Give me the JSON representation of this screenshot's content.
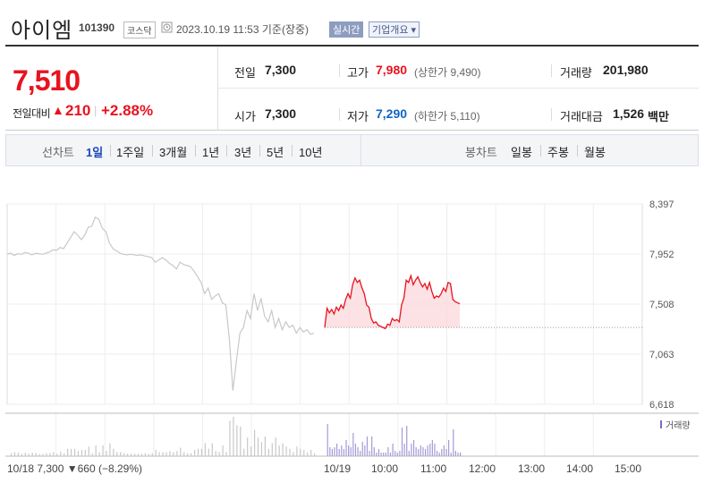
{
  "header": {
    "name": "아이엠",
    "code": "101390",
    "market": "코스닥",
    "datetime": "2023.10.19 11:53  기준(장중)",
    "realtime_label": "실시간",
    "overview_label": "기업개요 ▾"
  },
  "quote": {
    "price": "7,510",
    "change_label": "전일대비",
    "change_amount": "210",
    "change_rate": "+2.88%",
    "prev_close_label": "전일",
    "prev_close": "7,300",
    "open_label": "시가",
    "open": "7,300",
    "high_label": "고가",
    "high": "7,980",
    "upper_limit": "(상한가 9,490)",
    "low_label": "저가",
    "low": "7,290",
    "lower_limit": "(하한가 5,110)",
    "volume_label": "거래량",
    "volume": "201,980",
    "amount_label": "거래대금",
    "amount": "1,526",
    "amount_unit": "백만"
  },
  "tabs": {
    "line_chart_label": "선차트",
    "line_tabs": [
      "1일",
      "1주일",
      "3개월",
      "1년",
      "3년",
      "5년",
      "10년"
    ],
    "selected": "1일",
    "candle_chart_label": "봉차트",
    "candle_tabs": [
      "일봉",
      "주봉",
      "월봉"
    ]
  },
  "chart_data": {
    "type": "line",
    "y_ticks": [
      "8,397",
      "7,952",
      "7,508",
      "7,063",
      "6,618"
    ],
    "ylim": [
      6618,
      8397
    ],
    "prev_close_ref": 7300,
    "x_ticks": [
      "10/19",
      "10:00",
      "11:00",
      "12:00",
      "13:00",
      "14:00",
      "15:00"
    ],
    "prev_day_summary": "10/18  7,300 ▼660 (−8.29%)",
    "volume_legend": "거래량",
    "series": [
      {
        "values": [
          7950,
          7960,
          7940,
          7955,
          7950,
          7965,
          7960,
          7945,
          7958,
          7955,
          7950,
          7960,
          7970,
          7990,
          7985,
          8010,
          8000,
          8050,
          8100,
          8150,
          8120,
          8080,
          8120,
          8190,
          8200,
          8280,
          8260,
          8180,
          8150,
          8050,
          8000,
          7980,
          7960,
          7950,
          7945,
          7950,
          7945,
          7940,
          7945,
          7935,
          7930,
          7920,
          7880,
          7900,
          7920,
          7900,
          7870,
          7850,
          7820,
          7880,
          7860,
          7850,
          7840,
          7800,
          7750,
          7700,
          7600,
          7650,
          7550,
          7580,
          7600,
          7520,
          7500,
          7200,
          6740,
          7000,
          7250,
          7300,
          7450,
          7380,
          7600,
          7450,
          7560,
          7400,
          7350,
          7450,
          7300,
          7380,
          7280,
          7350,
          7300,
          7320,
          7250,
          7300,
          7260,
          7280,
          7240,
          7250
        ]
      },
      {
        "values": [
          7300,
          7470,
          7430,
          7460,
          7420,
          7480,
          7450,
          7500,
          7470,
          7550,
          7600,
          7560,
          7680,
          7740,
          7700,
          7720,
          7650,
          7600,
          7500,
          7480,
          7380,
          7340,
          7350,
          7320,
          7310,
          7300,
          7290,
          7330,
          7320,
          7380,
          7360,
          7370,
          7350,
          7500,
          7560,
          7720,
          7700,
          7760,
          7680,
          7720,
          7750,
          7700,
          7660,
          7690,
          7640,
          7700,
          7620,
          7560,
          7580,
          7570,
          7600,
          7650,
          7620,
          7700,
          7690,
          7550,
          7530,
          7520,
          7510
        ]
      }
    ]
  }
}
